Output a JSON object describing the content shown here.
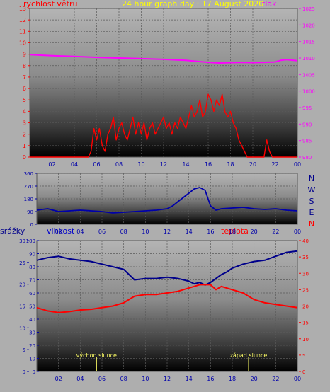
{
  "colors": {
    "background": "#aeaeae",
    "wind": "#ff0000",
    "pressure": "#ff00ff",
    "direction": "#0000aa",
    "humidity": "#00008b",
    "temperature": "#ff0000",
    "title": "#ffff00",
    "event": "#ffff66"
  },
  "top_panel": {
    "title": "24 hour graph day : 17 August 2020",
    "wind_label": "rychlost větru",
    "pressure_label": "tlak"
  },
  "middle_panel": {
    "compass": [
      "N",
      "W",
      "S",
      "E",
      "N"
    ]
  },
  "bottom_panel": {
    "rain_label": "srážky",
    "humidity_label": "vlhkost",
    "temp_label": "teplota",
    "sunrise_label": "východ slunce",
    "sunset_label": "západ slunce"
  },
  "chart_data": [
    {
      "type": "line",
      "x_ticks": [
        "02",
        "04",
        "06",
        "08",
        "10",
        "12",
        "14",
        "16",
        "18",
        "20",
        "22",
        "00"
      ],
      "xlim": [
        0,
        24
      ],
      "y_left": {
        "label": "rychlost větru",
        "range": [
          0,
          13
        ],
        "ticks": [
          0,
          1,
          2,
          3,
          4,
          5,
          6,
          7,
          8,
          9,
          10,
          11,
          12,
          13
        ]
      },
      "y_right": {
        "label": "tlak",
        "range": [
          980,
          1025
        ],
        "ticks": [
          980,
          985,
          990,
          995,
          1000,
          1005,
          1010,
          1015,
          1020,
          1025
        ]
      },
      "series": [
        {
          "name": "rychlost větru",
          "axis": "left",
          "x": [
            0,
            1,
            2,
            3,
            4,
            4.5,
            5,
            5.25,
            5.5,
            5.75,
            6,
            6.25,
            6.5,
            6.75,
            7,
            7.25,
            7.5,
            7.75,
            8,
            8.25,
            8.5,
            8.75,
            9,
            9.25,
            9.5,
            9.75,
            10,
            10.25,
            10.5,
            10.75,
            11,
            11.25,
            11.5,
            11.75,
            12,
            12.25,
            12.5,
            12.75,
            13,
            13.25,
            13.5,
            13.75,
            14,
            14.25,
            14.5,
            14.75,
            15,
            15.25,
            15.5,
            15.75,
            16,
            16.25,
            16.5,
            16.75,
            17,
            17.25,
            17.5,
            17.75,
            18,
            18.25,
            18.5,
            18.75,
            19,
            19.25,
            19.5,
            19.75,
            20,
            20.5,
            21,
            21.25,
            21.5,
            21.75,
            22,
            23,
            24
          ],
          "values": [
            0,
            0,
            0,
            0,
            0,
            0,
            0,
            0,
            0.5,
            2.5,
            1.5,
            2.5,
            1,
            0.5,
            2,
            2.5,
            3.5,
            1.5,
            2.5,
            3,
            2,
            1.5,
            2.5,
            3.5,
            2,
            3,
            2,
            3,
            1.5,
            2.5,
            3,
            2,
            2.5,
            3,
            3.5,
            2.5,
            3,
            2,
            3,
            2.5,
            3.5,
            3,
            2.5,
            3.5,
            4.5,
            3.5,
            4,
            5,
            3.5,
            4,
            5.5,
            5,
            4,
            5,
            4.5,
            5.5,
            4,
            3.5,
            4,
            3,
            2.5,
            1.5,
            1,
            0.5,
            0,
            0,
            0,
            0,
            0,
            1.5,
            0.5,
            0,
            0,
            0,
            0
          ]
        },
        {
          "name": "tlak",
          "axis": "right",
          "x": [
            0,
            2,
            4,
            6,
            8,
            10,
            12,
            14,
            15,
            16,
            17,
            18,
            19,
            20,
            21,
            22,
            22.5,
            23,
            24
          ],
          "values": [
            1011,
            1010.7,
            1010.5,
            1010.2,
            1010,
            1009.8,
            1009.6,
            1009.3,
            1009,
            1008.7,
            1008.5,
            1008.6,
            1008.7,
            1008.6,
            1008.7,
            1008.8,
            1009.3,
            1009.5,
            1009.2
          ]
        }
      ]
    },
    {
      "type": "line",
      "x_ticks": [
        "02",
        "04",
        "06",
        "08",
        "10",
        "12",
        "14",
        "16",
        "18",
        "20",
        "22",
        "00"
      ],
      "xlim": [
        0,
        24
      ],
      "y": {
        "range": [
          0,
          360
        ],
        "ticks": [
          0,
          90,
          180,
          270,
          360
        ]
      },
      "series": [
        {
          "axis": "left",
          "x": [
            0,
            1,
            2,
            3,
            4,
            5,
            6,
            7,
            8,
            9,
            10,
            11,
            12,
            12.5,
            13,
            13.5,
            14,
            14.5,
            15,
            15.5,
            16,
            16.5,
            17,
            18,
            19,
            20,
            21,
            22,
            23,
            24
          ],
          "values": [
            100,
            110,
            90,
            95,
            100,
            95,
            90,
            80,
            85,
            90,
            95,
            100,
            110,
            130,
            160,
            190,
            220,
            250,
            260,
            240,
            130,
            100,
            110,
            115,
            120,
            110,
            105,
            110,
            100,
            95
          ]
        }
      ]
    },
    {
      "type": "line",
      "x_ticks": [
        "02",
        "04",
        "06",
        "08",
        "10",
        "12",
        "14",
        "16",
        "18",
        "20",
        "22",
        "00"
      ],
      "xlim": [
        0,
        24
      ],
      "y_rain": {
        "label": "srážky",
        "range": [
          0,
          30
        ],
        "ticks": [
          0,
          5,
          10,
          15,
          20,
          25,
          30
        ]
      },
      "y_left": {
        "label": "vlhkost",
        "range": [
          0,
          100
        ],
        "ticks": [
          0,
          10,
          20,
          30,
          40,
          50,
          60,
          70,
          80,
          90,
          100
        ]
      },
      "y_right": {
        "label": "teplota",
        "range": [
          0,
          40
        ],
        "ticks": [
          0,
          5,
          10,
          15,
          20,
          25,
          30,
          35,
          40
        ]
      },
      "series": [
        {
          "name": "vlhkost",
          "axis": "left",
          "x": [
            0,
            1,
            2,
            3,
            4,
            5,
            6,
            7,
            8,
            8.5,
            9,
            10,
            11,
            12,
            13,
            14,
            14.5,
            15,
            15.5,
            16,
            16.5,
            17,
            17.5,
            18,
            19,
            20,
            21,
            22,
            23,
            24
          ],
          "values": [
            85,
            87,
            88,
            86,
            85,
            84,
            82,
            80,
            78,
            74,
            70,
            71,
            71,
            72,
            71,
            69,
            67,
            68,
            66,
            68,
            71,
            74,
            76,
            79,
            82,
            84,
            85,
            88,
            91,
            92
          ]
        },
        {
          "name": "teplota",
          "axis": "right",
          "x": [
            0,
            1,
            2,
            3,
            4,
            5,
            6,
            7,
            8,
            9,
            10,
            11,
            12,
            13,
            14,
            15,
            16,
            16.5,
            17,
            18,
            19,
            20,
            21,
            22,
            23,
            24
          ],
          "values": [
            19.5,
            18.5,
            18,
            18.3,
            18.8,
            19,
            19.5,
            20,
            21,
            23,
            23.5,
            23.5,
            24,
            24.5,
            25.5,
            26.5,
            26.5,
            25,
            26,
            25,
            24,
            22,
            21,
            20.5,
            20,
            19.5
          ]
        }
      ],
      "events": [
        {
          "name": "východ slunce",
          "x": 5.5
        },
        {
          "name": "západ slunce",
          "x": 19.5
        }
      ]
    }
  ]
}
